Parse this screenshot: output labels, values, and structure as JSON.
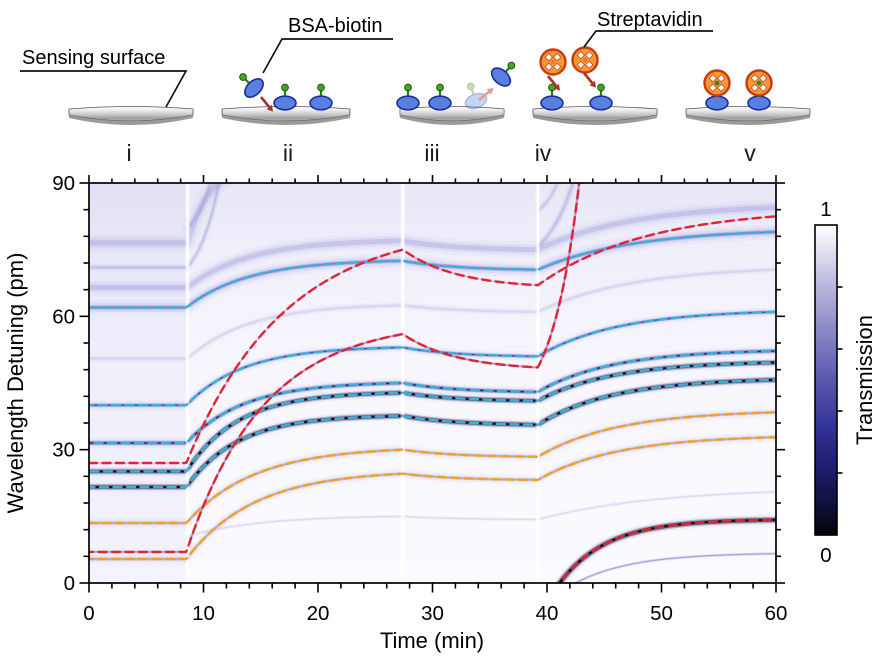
{
  "schematic": {
    "labels": {
      "sensing_surface": "Sensing surface",
      "bsa_biotin": "BSA-biotin",
      "streptavidin": "Streptavidin"
    },
    "stages": [
      {
        "numeral": "i"
      },
      {
        "numeral": "ii"
      },
      {
        "numeral": "iii"
      },
      {
        "numeral": "iv"
      },
      {
        "numeral": "v"
      }
    ],
    "colors": {
      "molecule_body": "#5b7fe0",
      "molecule_outline": "#17309e",
      "biotin_green": "#44a426",
      "streptavidin_fill": "#f5973a",
      "streptavidin_outline": "#c93b08",
      "arrow_red": "#a93226",
      "surface_gray": "#9e9e9e"
    }
  },
  "chart_data": {
    "type": "heatmap",
    "title": "",
    "xlabel": "Time (min)",
    "ylabel": "Wavelength Detuning (pm)",
    "xlim": [
      0,
      60
    ],
    "ylim": [
      0,
      90
    ],
    "xticks": [
      0,
      10,
      20,
      30,
      40,
      50,
      60
    ],
    "x_minor_step": 2,
    "yticks": [
      0,
      30,
      60,
      90
    ],
    "y_minor_step": 6,
    "grid": false,
    "colorbar": {
      "label": "Transmission",
      "max_label": "1",
      "min_label": "0",
      "range": [
        0,
        1
      ],
      "ticks": [
        0.2,
        0.4,
        0.6,
        0.8
      ],
      "stops": [
        [
          0,
          "#040407"
        ],
        [
          0.1,
          "#10103c"
        ],
        [
          0.22,
          "#1d1e6e"
        ],
        [
          0.35,
          "#34339a"
        ],
        [
          0.5,
          "#5a58ad"
        ],
        [
          0.66,
          "#8a88c5"
        ],
        [
          0.82,
          "#bfbde0"
        ],
        [
          1,
          "#ffffff"
        ]
      ]
    },
    "phase_boundaries_min": [
      8.6,
      27.4,
      39.2
    ],
    "trace_colors": {
      "red": "#e32330",
      "cyan": "#3ab0dd",
      "orange": "#f5a01e"
    },
    "traces": [
      {
        "name": "mode-1",
        "color": "cyan",
        "points": [
          [
            0,
            62,
            0
          ],
          [
            8.5,
            62,
            0
          ],
          [
            27.4,
            72.5,
            3.5
          ],
          [
            39.2,
            70.5,
            2.5
          ],
          [
            60,
            79,
            2.5
          ]
        ]
      },
      {
        "name": "mode-2",
        "color": "cyan",
        "points": [
          [
            0,
            40,
            0
          ],
          [
            8.5,
            40,
            0
          ],
          [
            27.4,
            53,
            3.8
          ],
          [
            39.2,
            51,
            2.5
          ],
          [
            60,
            61,
            3
          ]
        ]
      },
      {
        "name": "mode-3",
        "color": "cyan",
        "points": [
          [
            0,
            31.5,
            0
          ],
          [
            8.5,
            31.5,
            0
          ],
          [
            27.4,
            45,
            3.8
          ],
          [
            39.2,
            43,
            2.5
          ],
          [
            60,
            52.2,
            3.2
          ]
        ]
      },
      {
        "name": "mode-4",
        "color": "cyan",
        "points": [
          [
            0,
            25.1,
            0
          ],
          [
            8.5,
            25.1,
            0
          ],
          [
            27.4,
            42.8,
            4.2
          ],
          [
            39.2,
            41,
            2.5
          ],
          [
            60,
            49.6,
            3.2
          ]
        ]
      },
      {
        "name": "mode-5",
        "color": "cyan",
        "points": [
          [
            0,
            21.6,
            0
          ],
          [
            8.5,
            21.6,
            0
          ],
          [
            27.4,
            37.6,
            4.2
          ],
          [
            39.2,
            35.6,
            2.5
          ],
          [
            60,
            45.7,
            3.2
          ]
        ]
      },
      {
        "name": "tm-1",
        "color": "orange",
        "points": [
          [
            0,
            13.5,
            0
          ],
          [
            8.5,
            13.5,
            0
          ],
          [
            27.4,
            30,
            3.2
          ],
          [
            39.2,
            28.4,
            2.5
          ],
          [
            60,
            38.4,
            3
          ]
        ]
      },
      {
        "name": "tm-2",
        "color": "orange",
        "points": [
          [
            0,
            5.4,
            0
          ],
          [
            8.5,
            5.4,
            0
          ],
          [
            27.4,
            24.6,
            3.2
          ],
          [
            39.2,
            23.2,
            2.5
          ],
          [
            60,
            32.8,
            3
          ]
        ]
      },
      {
        "name": "ring-1",
        "color": "red",
        "points": [
          [
            0,
            27,
            0
          ],
          [
            8.5,
            27,
            0
          ],
          [
            27.4,
            75,
            2.2
          ],
          [
            39.2,
            67,
            2.5
          ],
          [
            60,
            82.5,
            2.2
          ]
        ]
      },
      {
        "name": "ring-2",
        "color": "red",
        "points": [
          [
            0,
            7,
            0
          ],
          [
            8.5,
            7,
            0
          ],
          [
            27.4,
            56,
            2.8
          ],
          [
            39.2,
            48.5,
            2.5
          ],
          [
            42.9,
            92,
            -1.5
          ]
        ]
      },
      {
        "name": "ring-2-wrap",
        "color": "red",
        "points": [
          [
            41.1,
            0,
            0
          ],
          [
            60,
            14.2,
            4.5
          ]
        ]
      }
    ],
    "bands": [
      {
        "points": [
          [
            0,
            76.5,
            0
          ],
          [
            8.6,
            76.5,
            0
          ],
          [
            12.5,
            92,
            2
          ]
        ],
        "w": 6,
        "a": 0.28,
        "c": "#928dd8"
      },
      {
        "points": [
          [
            0,
            66.5,
            0
          ],
          [
            8.6,
            66.5,
            0
          ],
          [
            27.4,
            77,
            3.5
          ],
          [
            39.2,
            75,
            2.5
          ],
          [
            60,
            84.5,
            2.5
          ]
        ],
        "w": 5.5,
        "a": 0.3,
        "c": "#928dd8"
      },
      {
        "points": [
          [
            0,
            71,
            0
          ],
          [
            8.6,
            71,
            0
          ],
          [
            11.5,
            92,
            -1.5
          ]
        ],
        "w": 2.5,
        "a": 0.3,
        "c": "#928dd8"
      },
      {
        "points": [
          [
            8.6,
            80,
            0
          ],
          [
            10.8,
            92,
            -1.5
          ]
        ],
        "w": 2.5,
        "a": 0.28,
        "c": "#928dd8"
      },
      {
        "points": [
          [
            39.3,
            76,
            0
          ],
          [
            42.5,
            92,
            -1.3
          ]
        ],
        "w": 3,
        "a": 0.3,
        "c": "#928dd8"
      },
      {
        "points": [
          [
            39.3,
            84,
            0
          ],
          [
            41.2,
            92,
            -1.3
          ]
        ],
        "w": 2.5,
        "a": 0.25,
        "c": "#928dd8"
      },
      {
        "points": [
          [
            0,
            50.5,
            0
          ],
          [
            8.6,
            50.5,
            0
          ],
          [
            27.4,
            62.5,
            3.5
          ],
          [
            39.2,
            61,
            2.5
          ],
          [
            60,
            70.5,
            2.5
          ]
        ],
        "w": 2.5,
        "a": 0.18,
        "c": "#928dd8"
      },
      {
        "points": [
          [
            8.6,
            10.5,
            0
          ],
          [
            27.4,
            15,
            3
          ],
          [
            39.2,
            14.3,
            2.5
          ],
          [
            60,
            20.5,
            2
          ]
        ],
        "w": 1.5,
        "a": 0.18,
        "c": "#928dd8"
      },
      {
        "ref": "mode-1",
        "w": 5,
        "a": 0.32,
        "c": "#928dd8"
      },
      {
        "ref": "mode-1",
        "w": 1.4,
        "a": 0.5,
        "c": "#4b48b0"
      },
      {
        "ref": "ring-1",
        "w": 1.2,
        "a": 0.25,
        "c": "#7a74cc"
      },
      {
        "ref": "ring-2",
        "w": 1.2,
        "a": 0.5,
        "c": "#5b55c0"
      },
      {
        "ref": "mode-2",
        "w": 3.2,
        "a": 0.3,
        "c": "#928dd8"
      },
      {
        "ref": "mode-2",
        "w": 1.2,
        "a": 0.8,
        "c": "#34329a"
      },
      {
        "ref": "mode-3",
        "w": 3.6,
        "a": 0.32,
        "c": "#928dd8"
      },
      {
        "ref": "mode-3",
        "w": 1.5,
        "a": 0.85,
        "c": "#1c1b60"
      },
      {
        "ref": "mode-4",
        "w": 3.2,
        "a": 0.45,
        "c": "#8a85d0"
      },
      {
        "ref": "mode-4",
        "w": 1.9,
        "a": 1,
        "c": "#090818"
      },
      {
        "ref": "mode-5",
        "w": 3.2,
        "a": 0.45,
        "c": "#8a85d0"
      },
      {
        "ref": "mode-5",
        "w": 2.0,
        "a": 1,
        "c": "#090818"
      },
      {
        "ref": "tm-1",
        "w": 3.6,
        "a": 0.2,
        "c": "#928dd8"
      },
      {
        "ref": "tm-1",
        "w": 1.1,
        "a": 0.35,
        "c": "#6b65c8"
      },
      {
        "ref": "tm-2",
        "w": 3.6,
        "a": 0.2,
        "c": "#928dd8"
      },
      {
        "ref": "tm-2",
        "w": 1.1,
        "a": 0.35,
        "c": "#6b65c8"
      },
      {
        "ref": "ring-2-wrap",
        "w": 3.6,
        "a": 0.5,
        "c": "#8a85d0"
      },
      {
        "ref": "ring-2-wrap",
        "w": 2.2,
        "a": 1,
        "c": "#07060f"
      },
      {
        "points": [
          [
            42.5,
            0,
            0
          ],
          [
            60,
            6.6,
            3.5
          ]
        ],
        "w": 1.2,
        "a": 0.4,
        "c": "#5b55c0"
      }
    ]
  }
}
